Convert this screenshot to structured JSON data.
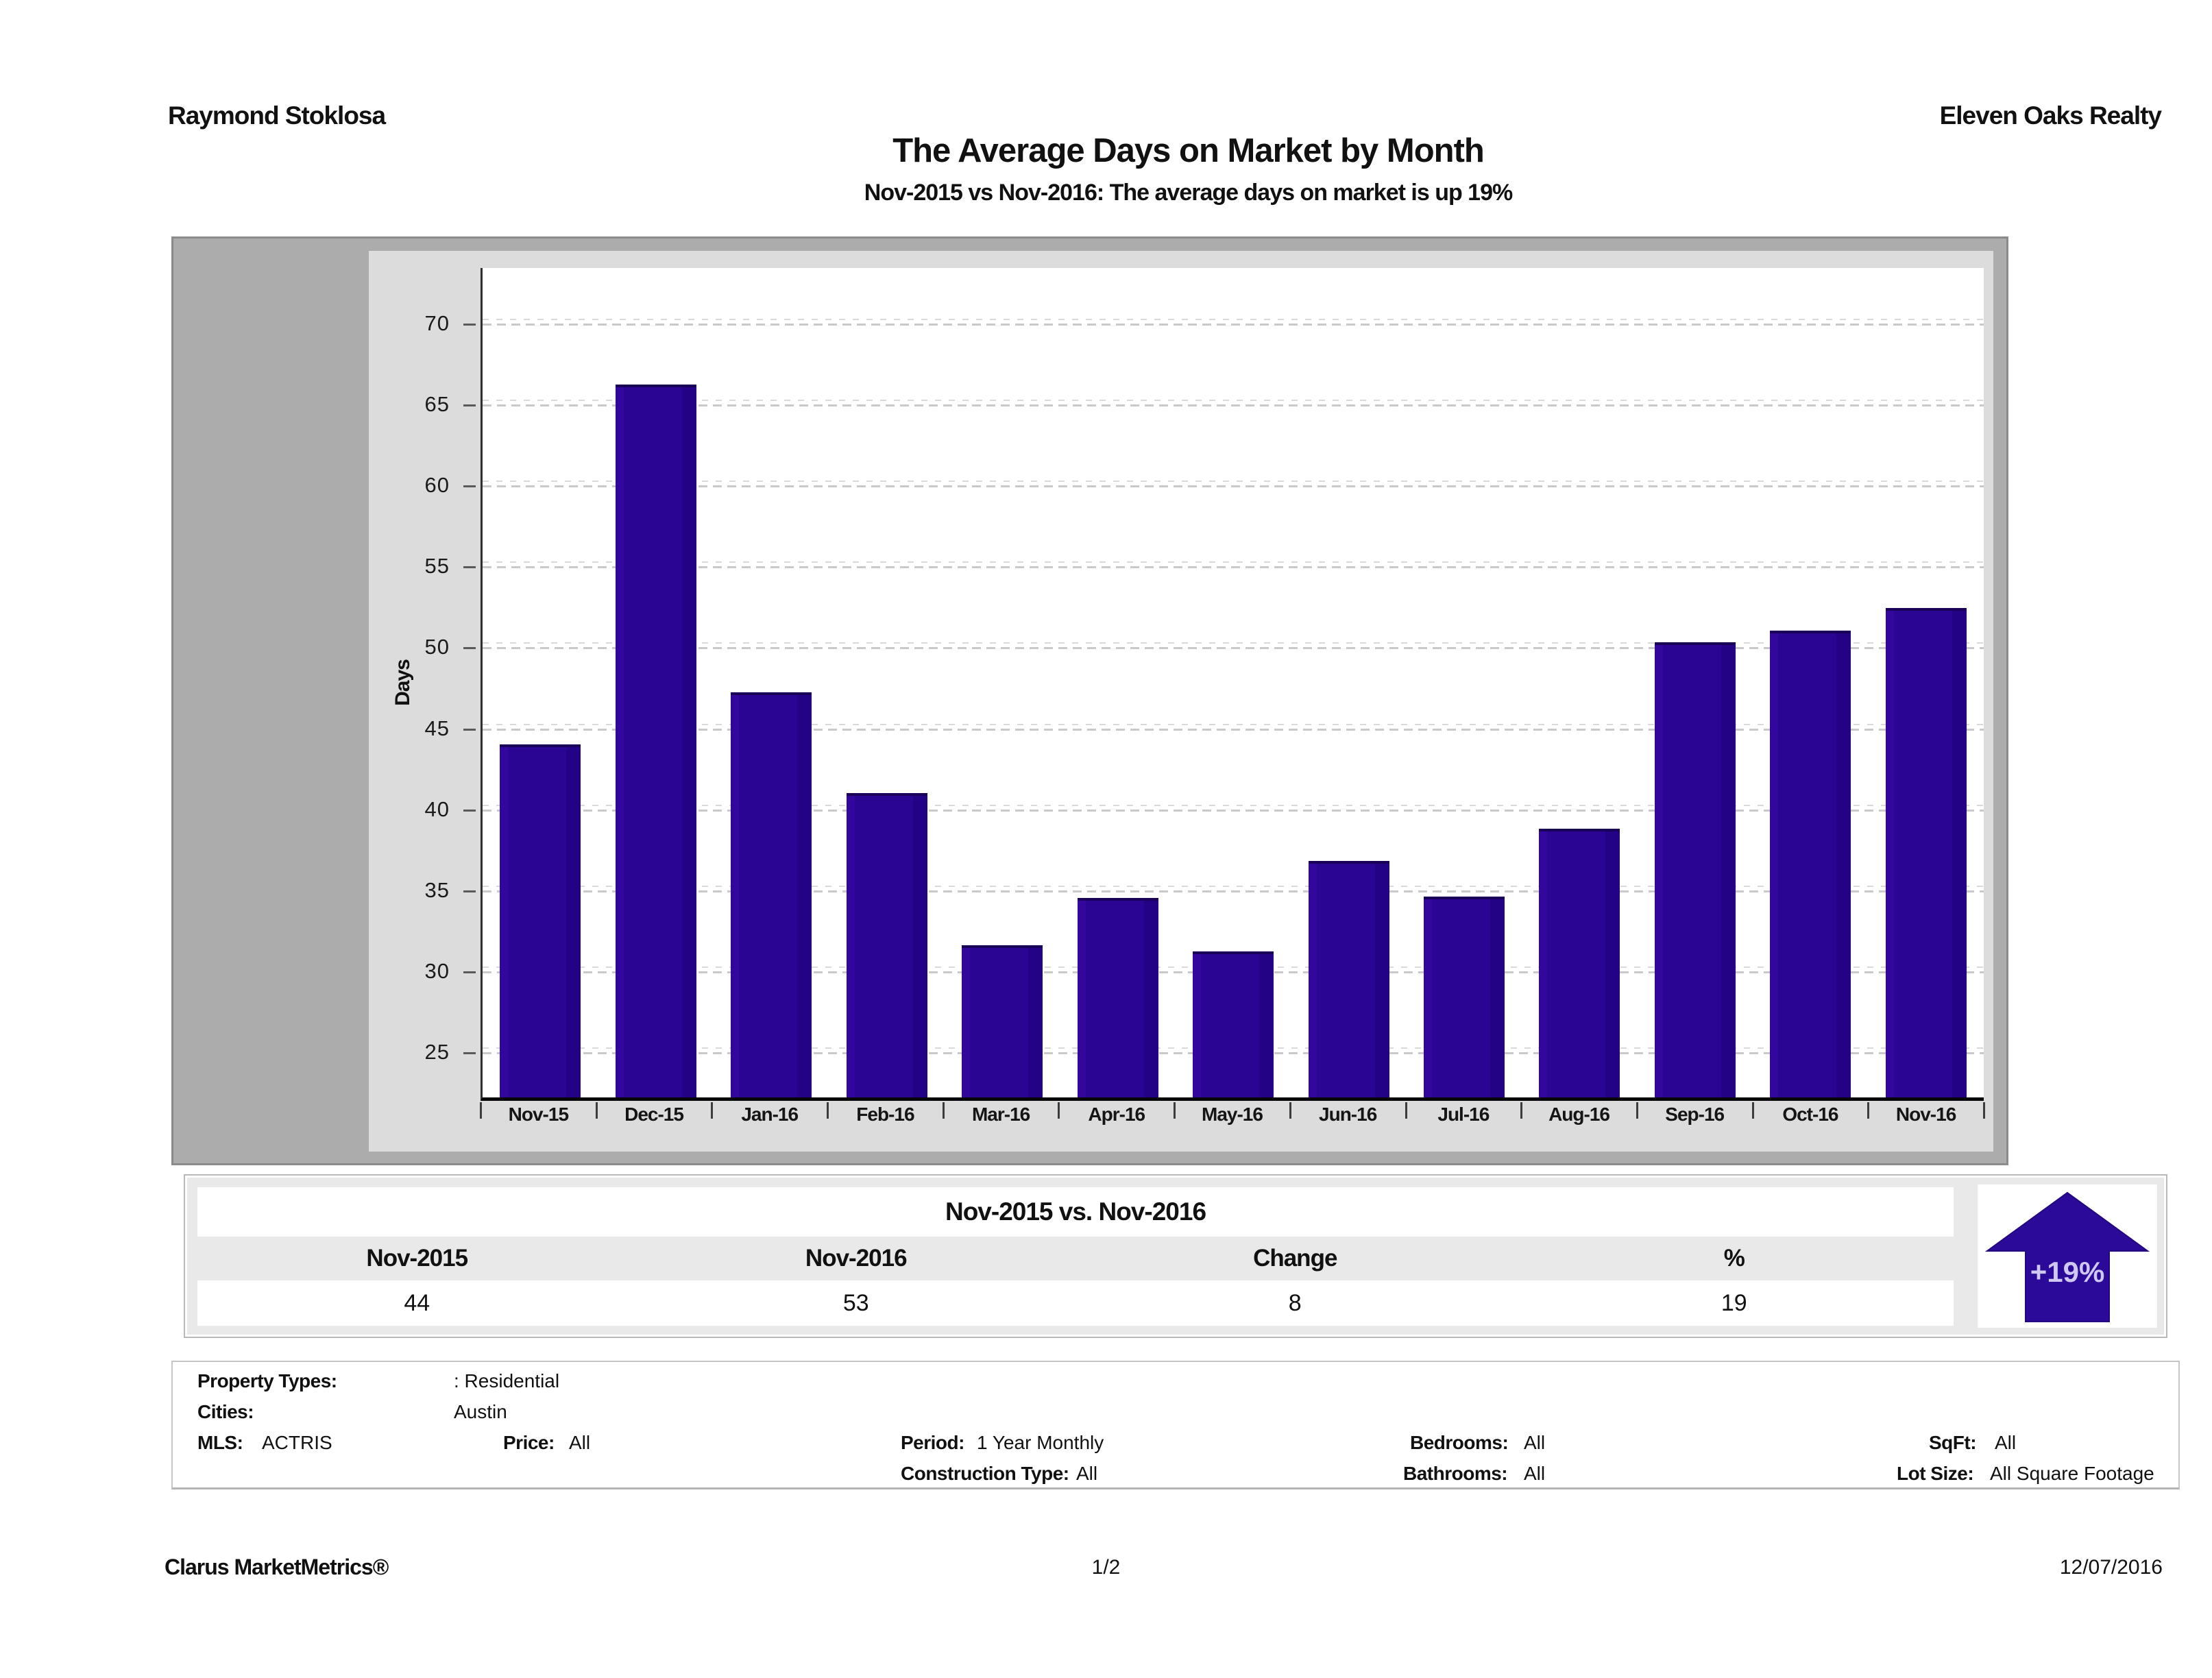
{
  "header": {
    "agent": "Raymond Stoklosa",
    "company": "Eleven Oaks Realty"
  },
  "title": "The Average Days on Market by Month",
  "subtitle": "Nov-2015 vs Nov-2016: The average days on market is up 19%",
  "chart_data": {
    "type": "bar",
    "categories": [
      "Nov-15",
      "Dec-15",
      "Jan-16",
      "Feb-16",
      "Mar-16",
      "Apr-16",
      "May-16",
      "Jun-16",
      "Jul-16",
      "Aug-16",
      "Sep-16",
      "Oct-16",
      "Nov-16"
    ],
    "values": [
      44.1,
      66.3,
      47.3,
      41.1,
      31.7,
      34.6,
      31.3,
      36.9,
      34.7,
      38.9,
      50.4,
      51.1,
      52.5
    ],
    "title": "",
    "xlabel": "",
    "ylabel": "Days",
    "ylim": [
      22.3,
      73.5
    ],
    "yticks": [
      25,
      30,
      35,
      40,
      45,
      50,
      55,
      60,
      65,
      70
    ],
    "grid": true,
    "legend": "none",
    "bar_color": "#2a0593"
  },
  "comparison_table": {
    "title": "Nov-2015 vs. Nov-2016",
    "columns": [
      "Nov-2015",
      "Nov-2016",
      "Change",
      "%"
    ],
    "values": [
      "44",
      "53",
      "8",
      "19"
    ]
  },
  "change_badge": {
    "label": "+19%",
    "direction": "up",
    "arrow_color": "#2b0a99",
    "label_color": "#cfc8f2"
  },
  "filters": {
    "property_types_label": "Property Types:",
    "property_types_value": ": Residential",
    "cities_label": "Cities:",
    "cities_value": "Austin",
    "mls_label": "MLS:",
    "mls_value": "ACTRIS",
    "price_label": "Price:",
    "price_value": "All",
    "period_label": "Period:",
    "period_value": "1 Year Monthly",
    "construction_label": "Construction Type:",
    "construction_value": "All",
    "bedrooms_label": "Bedrooms:",
    "bedrooms_value": "All",
    "bathrooms_label": "Bathrooms:",
    "bathrooms_value": "All",
    "sqft_label": "SqFt:",
    "sqft_value": "All",
    "lotsize_label": "Lot Size:",
    "lotsize_value": "All Square Footage"
  },
  "footer": {
    "left": "Clarus MarketMetrics®",
    "center": "1/2",
    "right": "12/07/2016"
  }
}
